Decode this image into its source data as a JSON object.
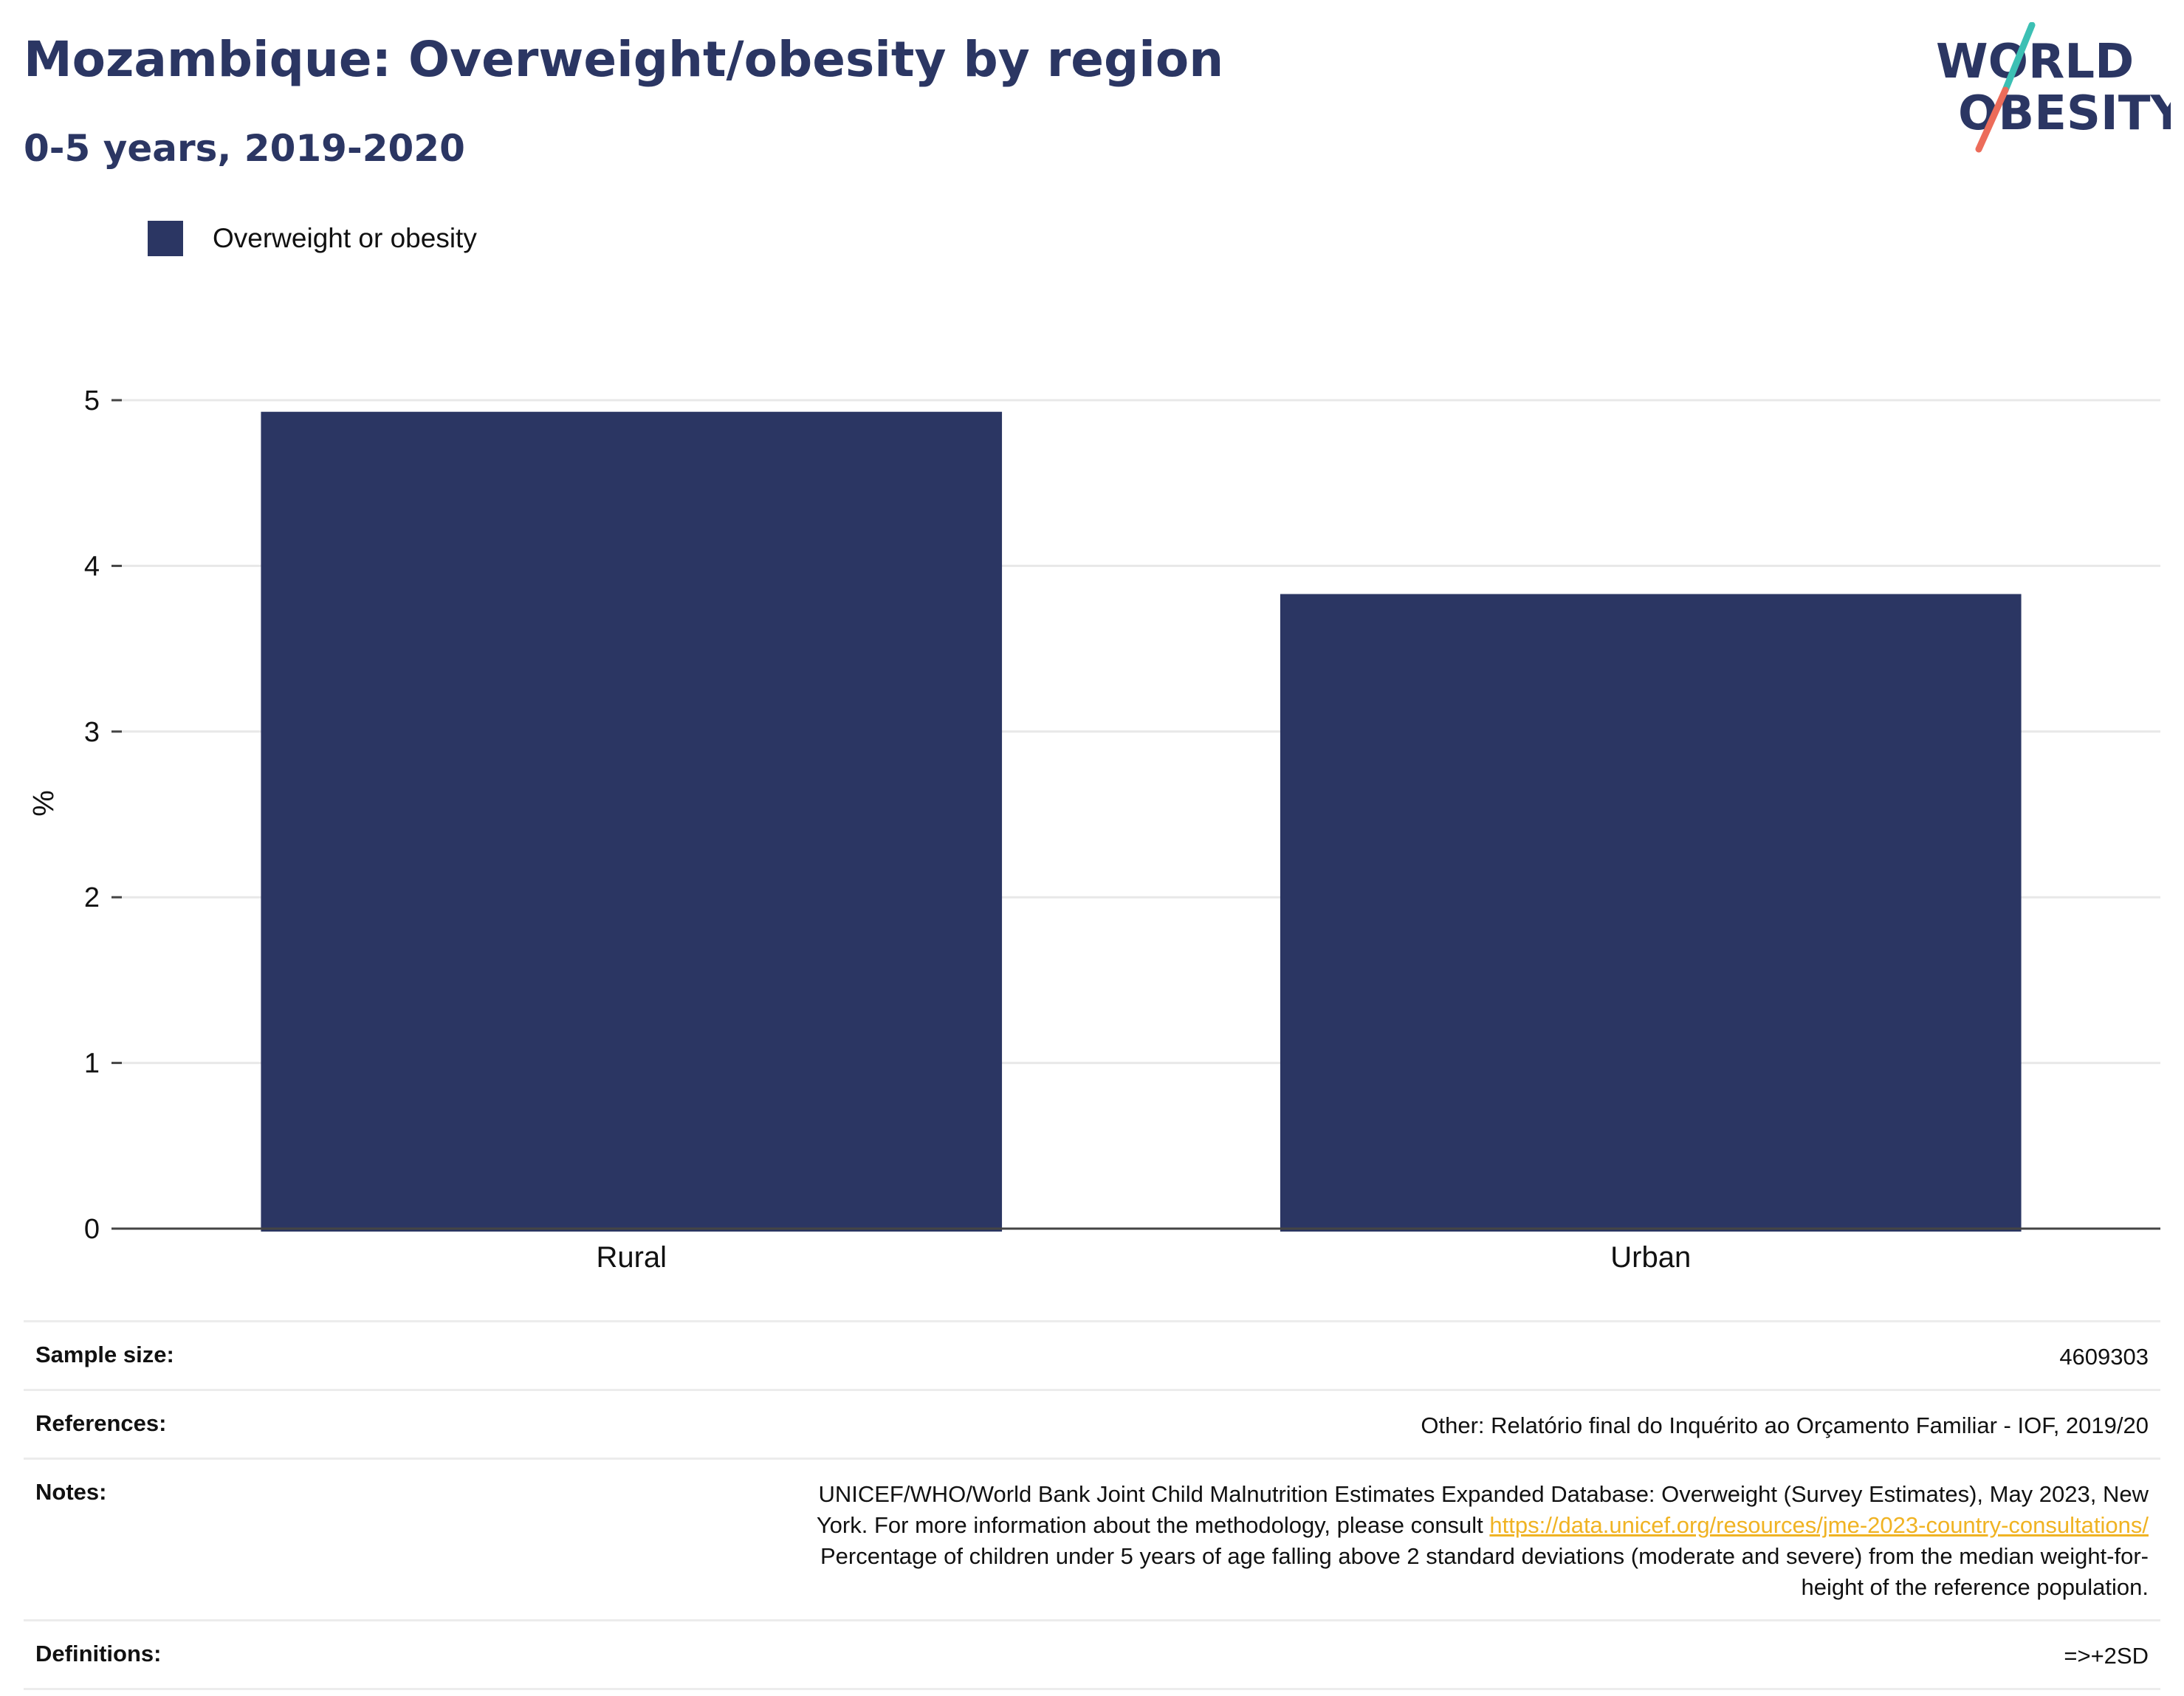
{
  "header": {
    "title": "Mozambique: Overweight/obesity by region",
    "subtitle": "0-5 years, 2019-2020"
  },
  "logo": {
    "line1": "WORLD",
    "line2": "OBESITY"
  },
  "colors": {
    "bar": "#2b3663",
    "title": "#2b3663",
    "link": "#f0b323",
    "logo_teal": "#3cc0b4",
    "logo_coral": "#ec6c5a"
  },
  "chart_data": {
    "type": "bar",
    "categories": [
      "Rural",
      "Urban"
    ],
    "series": [
      {
        "name": "Overweight or obesity",
        "values": [
          4.93,
          3.83
        ]
      }
    ],
    "ylabel": "%",
    "xlabel": "",
    "ylim": [
      0,
      5
    ],
    "yticks": [
      0,
      1,
      2,
      3,
      4,
      5
    ],
    "grid": true,
    "legend": "top-left"
  },
  "meta": {
    "sample_size": {
      "label": "Sample size:",
      "value": "4609303"
    },
    "references": {
      "label": "References:",
      "value": "Other: Relatório final do Inquérito ao Orçamento Familiar - IOF, 2019/20"
    },
    "notes": {
      "label": "Notes:",
      "line1": "UNICEF/WHO/World Bank Joint Child Malnutrition Estimates Expanded Database: Overweight (Survey Estimates), May 2023, New",
      "line2_prefix": "York. For more information about the methodology, please consult",
      "link": "https://data.unicef.org/resources/jme-2023-country-consultations/",
      "line3": "Percentage of children under 5 years of age falling above 2 standard deviations (moderate and severe) from the median weight-for-",
      "line4": "height of the reference population."
    },
    "definitions": {
      "label": "Definitions:",
      "value": "=>+2SD"
    }
  }
}
